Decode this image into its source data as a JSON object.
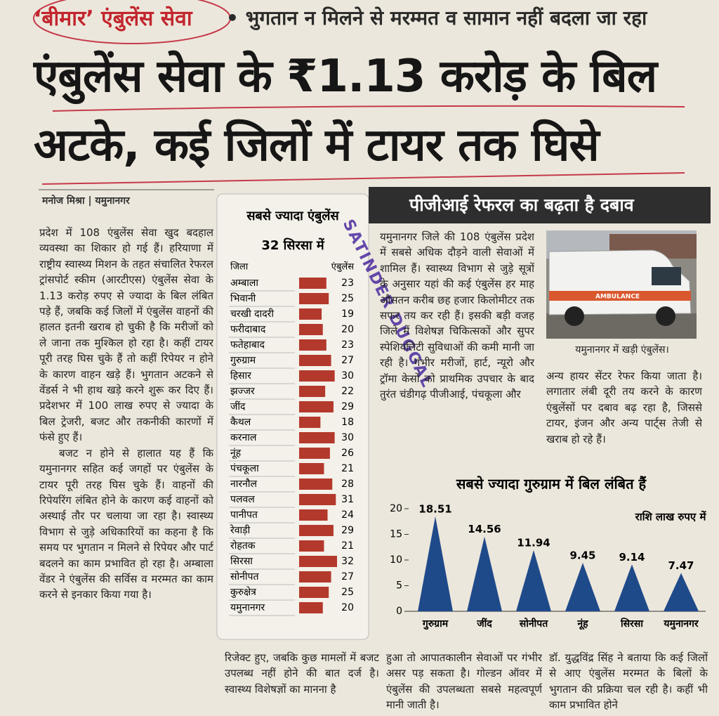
{
  "header": {
    "kicker": "‘बीमार’ एंबुलेंस सेवा",
    "subhead": "भुगतान न मिलने से मरम्मत व सामान नहीं बदला जा रहा",
    "headline": [
      "एंबुलेंस सेवा के ₹1.13 करोड़ के बिल",
      "अटके, कई जिलों में टायर तक घिसे"
    ]
  },
  "byline": {
    "author": "मनोज मिश्रा",
    "place": "यमुनानगर"
  },
  "stamp": "SATINDER DUGGAL",
  "article": {
    "column1": [
      "प्रदेश में 108 एंबुलेंस सेवा खुद बदहाल व्यवस्था का शिकार हो गई हैं। हरियाणा में राष्ट्रीय स्वास्थ्य मिशन के तहत संचालित रेफरल ट्रांसपोर्ट स्कीम (आरटीएस) एंबुलेंस सेवा के 1.13 करोड़ रुपए से ज्यादा के बिल लंबित पड़े हैं, जबकि कई जिलों में एंबुलेंस वाहनों की हालत इतनी खराब हो चुकी है कि मरीजों को ले जाना तक मुश्किल हो रहा है। कहीं टायर पूरी तरह घिस चुके हैं तो कहीं रिपेयर न होने के कारण वाहन खड़े हैं। भुगतान अटकने से वेंडर्स ने भी हाथ खड़े करने शुरू कर दिए हैं। प्रदेशभर में 100 लाख रुपए से ज्यादा के बिल ट्रेजरी, बजट और तकनीकी कारणों में फंसे हुए हैं।",
      "बजट न होने से हालात यह हैं कि यमुनानगर सहित कई जगहों पर एंबुलेंस के टायर पूरी तरह घिस चुके हैं। वाहनों की रिपेयरिंग लंबित होने के कारण कई वाहनों को अस्थाई तौर पर चलाया जा रहा है। स्वास्थ्य विभाग से जुड़े अधिकारियों का कहना है कि समय पर भुगतान न मिलने से रिपेयर और पार्ट बदलने का काम प्रभावित हो रहा है। अम्बाला वेंडर ने एंबुलेंस की सर्विस व मरम्मत का काम करने से इनकार किया गया है।"
    ],
    "section_title": "पीजीआई रेफरल का बढ़ता है दबाव",
    "column3": "यमुनानगर जिले की 108 एंबुलेंस प्रदेश में सबसे अधिक दौड़ने वाली सेवाओं में शामिल हैं। स्वास्थ्य विभाग से जुड़े सूत्रों के अनुसार यहां की कई एंबुलेंस हर माह औसतन करीब छह हजार किलोमीटर तक सफर तय कर रही हैं। इसकी बड़ी वजह जिले में विशेषज्ञ चिकित्सकों और सुपर स्पेशियलिटी सुविधाओं की कमी मानी जा रही है। गंभीर मरीजों, हार्ट, न्यूरो और ट्रॉमा केसों को प्राथमिक उपचार के बाद तुरंत चंडीगढ़ पीजीआई, पंचकूला और",
    "photo_text": "AMBULANCE",
    "photo_caption": "यमुनानगर में खड़ी एंबुलेंस।",
    "column4": "अन्य हायर सेंटर रेफर किया जाता है। लगातार लंबी दूरी तय करने के कारण एंबुलेंसों पर दबाव बढ़ रहा है, जिससे टायर, इंजन और अन्य पार्ट्स तेजी से खराब हो रहे हैं।",
    "bottom": [
      "रिजेक्ट हुए, जबकि कुछ मामलों में बजट उपलब्ध नहीं होने की बात दर्ज है। स्वास्थ्य विशेषज्ञों का मानना है",
      "हुआ तो आपातकालीन सेवाओं पर गंभीर असर पड़ सकता है। गोल्डन ऑवर में एंबुलेंस की उपलब्धता सबसे महत्वपूर्ण मानी जाती है।",
      "डॉ. युद्धविंद्र सिंह ने बताया कि कई जिलों से आए एंबुलेंस मरम्मत के बिलों के भुगतान की प्रक्रिया चल रही है। कहीं भी काम प्रभावित होने"
    ]
  },
  "chart_data": [
    {
      "type": "bar",
      "orientation": "horizontal",
      "title": "सबसे ज्यादा एंबुलेंस",
      "subtitle": "32 सिरसा में",
      "category_label": "जिला",
      "value_label": "एंबुलेंस",
      "color": "#b3392c",
      "categories": [
        "अम्बाला",
        "भिवानी",
        "चरखी दादरी",
        "फरीदाबाद",
        "फतेहाबाद",
        "गुरुग्राम",
        "हिसार",
        "झज्जर",
        "जींद",
        "कैथल",
        "करनाल",
        "नूंह",
        "पंचकूला",
        "नारनौल",
        "पलवल",
        "पानीपत",
        "रेवाड़ी",
        "रोहतक",
        "सिरसा",
        "सोनीपत",
        "कुरुक्षेत्र",
        "यमुनानगर"
      ],
      "values": [
        23,
        25,
        19,
        20,
        23,
        27,
        30,
        22,
        29,
        18,
        30,
        26,
        21,
        28,
        31,
        24,
        29,
        21,
        32,
        27,
        25,
        20
      ]
    },
    {
      "type": "triangle",
      "title": "सबसे ज्यादा गुरुग्राम में बिल लंबित हैं",
      "subtitle": "राशि लाख रुपए में",
      "color": "#1f4a8a",
      "categories": [
        "गुरुग्राम",
        "जींद",
        "सोनीपत",
        "नूंह",
        "सिरसा",
        "यमुनानगर"
      ],
      "values": [
        18.51,
        14.56,
        11.94,
        9.45,
        9.14,
        7.47
      ],
      "ylim": [
        0,
        20
      ],
      "yticks": [
        0,
        5,
        10,
        15,
        20
      ]
    }
  ]
}
